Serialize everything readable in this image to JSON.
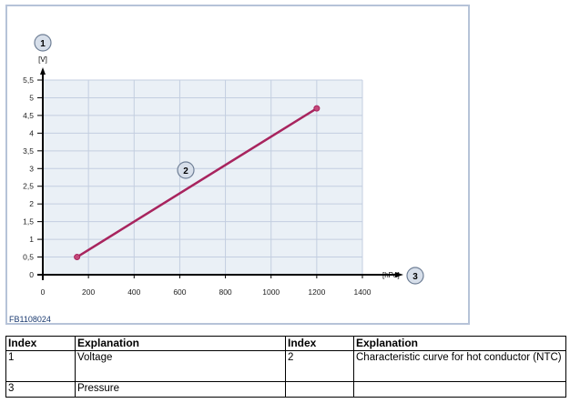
{
  "chart_data": {
    "type": "line",
    "x": [
      150,
      1200
    ],
    "series": [
      {
        "values": [
          0.5,
          4.7
        ],
        "color": "#a8245e"
      }
    ],
    "xlim": [
      0,
      1400
    ],
    "ylim": [
      0,
      5.5
    ],
    "xticks": [
      "0",
      "200",
      "400",
      "600",
      "800",
      "1000",
      "1200",
      "1400"
    ],
    "yticks": [
      "0",
      "0,5",
      "1",
      "1,5",
      "2",
      "2,5",
      "3",
      "3,5",
      "4",
      "4,5",
      "5",
      "5,5"
    ],
    "xlabel": "[hPa]",
    "ylabel": "[V]",
    "grid": true,
    "annotations": [
      "1",
      "2",
      "3"
    ],
    "plot_background": "#eaf0f6",
    "grid_color": "#c3cee0"
  },
  "figure_code": "FB1108024",
  "table": {
    "headers": [
      "Index",
      "Explanation",
      "Index",
      "Explanation"
    ],
    "rows": [
      [
        "1",
        "Voltage",
        "2",
        "Characteristic curve for hot conductor (NTC)"
      ],
      [
        "3",
        "Pressure",
        "",
        ""
      ]
    ]
  }
}
